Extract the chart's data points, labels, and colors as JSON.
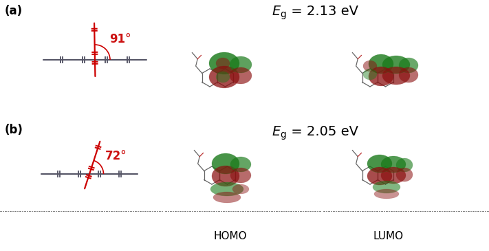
{
  "panel_a_label": "(a)",
  "panel_b_label": "(b)",
  "angle_a": "91°",
  "angle_b": "72°",
  "eg_a": " = 2.13 eV",
  "eg_b": " = 2.05 eV",
  "homo_label": "HOMO",
  "lumo_label": "LUMO",
  "red_color": "#cc0000",
  "chain_color": "#555566",
  "angle_text_color": "#cc1111",
  "bg_color": "#ffffff",
  "mol_color": "#777777",
  "green_blob": "#1a7a1a",
  "red_blob": "#8b1010",
  "font_size_panel": 12,
  "font_size_angle": 12,
  "font_size_eg": 13,
  "font_size_homo_lumo": 11
}
